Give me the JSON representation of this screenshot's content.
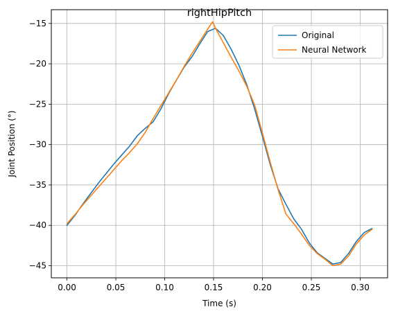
{
  "chart_data": {
    "type": "line",
    "title": "rightHipPitch",
    "xlabel": "Time (s)",
    "ylabel": "Joint Position (°)",
    "xlim": [
      -0.016,
      0.328
    ],
    "ylim": [
      -46.5,
      -13.3
    ],
    "xticks": [
      0.0,
      0.05,
      0.1,
      0.15,
      0.2,
      0.25,
      0.3
    ],
    "xtick_labels": [
      "0.00",
      "0.05",
      "0.10",
      "0.15",
      "0.20",
      "0.25",
      "0.30"
    ],
    "yticks": [
      -45,
      -40,
      -35,
      -30,
      -25,
      -20,
      -15
    ],
    "ytick_labels": [
      "−45",
      "−40",
      "−35",
      "−30",
      "−25",
      "−20",
      "−15"
    ],
    "grid": true,
    "legend": "top-right",
    "series": [
      {
        "name": "Original",
        "color": "#1f77b4",
        "x": [
          0.0,
          0.008,
          0.016,
          0.024,
          0.032,
          0.04,
          0.048,
          0.056,
          0.064,
          0.072,
          0.08,
          0.088,
          0.096,
          0.104,
          0.112,
          0.12,
          0.128,
          0.136,
          0.144,
          0.152,
          0.16,
          0.168,
          0.176,
          0.184,
          0.192,
          0.2,
          0.208,
          0.216,
          0.224,
          0.232,
          0.24,
          0.248,
          0.256,
          0.264,
          0.272,
          0.28,
          0.288,
          0.296,
          0.304,
          0.312
        ],
        "y": [
          -40.0,
          -38.8,
          -37.4,
          -36.1,
          -34.8,
          -33.6,
          -32.4,
          -31.3,
          -30.2,
          -28.9,
          -28.0,
          -27.2,
          -25.6,
          -23.7,
          -22.0,
          -20.4,
          -19.1,
          -17.5,
          -16.0,
          -15.6,
          -16.5,
          -18.2,
          -20.2,
          -22.6,
          -25.6,
          -29.0,
          -32.5,
          -35.5,
          -37.4,
          -39.2,
          -40.5,
          -42.2,
          -43.4,
          -44.1,
          -44.8,
          -44.6,
          -43.5,
          -42.0,
          -40.9,
          -40.4
        ]
      },
      {
        "name": "Neural Network",
        "color": "#ff7f0e",
        "x": [
          0.0,
          0.008,
          0.016,
          0.024,
          0.032,
          0.04,
          0.048,
          0.056,
          0.064,
          0.072,
          0.08,
          0.088,
          0.096,
          0.104,
          0.112,
          0.12,
          0.128,
          0.136,
          0.144,
          0.149,
          0.152,
          0.16,
          0.168,
          0.176,
          0.184,
          0.192,
          0.2,
          0.208,
          0.216,
          0.224,
          0.232,
          0.24,
          0.248,
          0.256,
          0.264,
          0.272,
          0.28,
          0.288,
          0.296,
          0.304,
          0.312
        ],
        "y": [
          -39.8,
          -38.7,
          -37.5,
          -36.4,
          -35.3,
          -34.2,
          -33.1,
          -32.0,
          -31.0,
          -29.9,
          -28.5,
          -26.8,
          -25.2,
          -23.6,
          -22.0,
          -20.3,
          -18.7,
          -17.2,
          -15.7,
          -14.8,
          -15.6,
          -17.4,
          -19.2,
          -20.9,
          -22.8,
          -25.1,
          -28.6,
          -32.2,
          -35.6,
          -38.6,
          -39.8,
          -41.1,
          -42.5,
          -43.5,
          -44.2,
          -45.0,
          -44.8,
          -43.8,
          -42.3,
          -41.2,
          -40.5
        ]
      }
    ]
  }
}
